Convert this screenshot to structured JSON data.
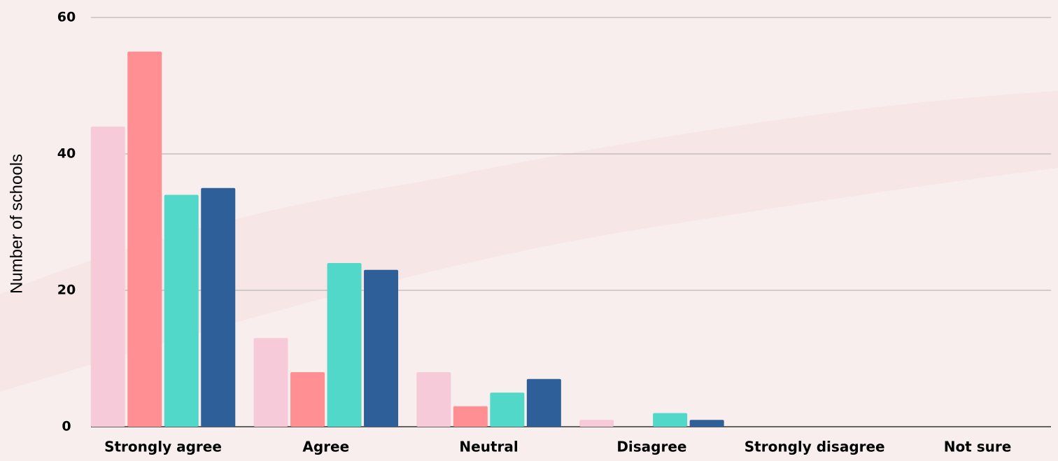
{
  "chart_data": {
    "type": "bar",
    "y_label": "Number of schools",
    "categories": [
      "Strongly agree",
      "Agree",
      "Neutral",
      "Disagree",
      "Strongly disagree",
      "Not sure"
    ],
    "series": [
      {
        "color": "#f7cad9",
        "values": [
          44,
          13,
          8,
          1,
          0,
          0
        ]
      },
      {
        "color": "#ff8f92",
        "values": [
          55,
          8,
          3,
          0,
          0,
          0
        ]
      },
      {
        "color": "#52d8c8",
        "values": [
          34,
          24,
          5,
          2,
          0,
          0
        ]
      },
      {
        "color": "#2e5f98",
        "values": [
          35,
          23,
          7,
          1,
          0,
          0
        ]
      }
    ],
    "ylim": [
      0,
      60
    ],
    "yticks": [
      0,
      20,
      40,
      60
    ],
    "grid": true
  }
}
